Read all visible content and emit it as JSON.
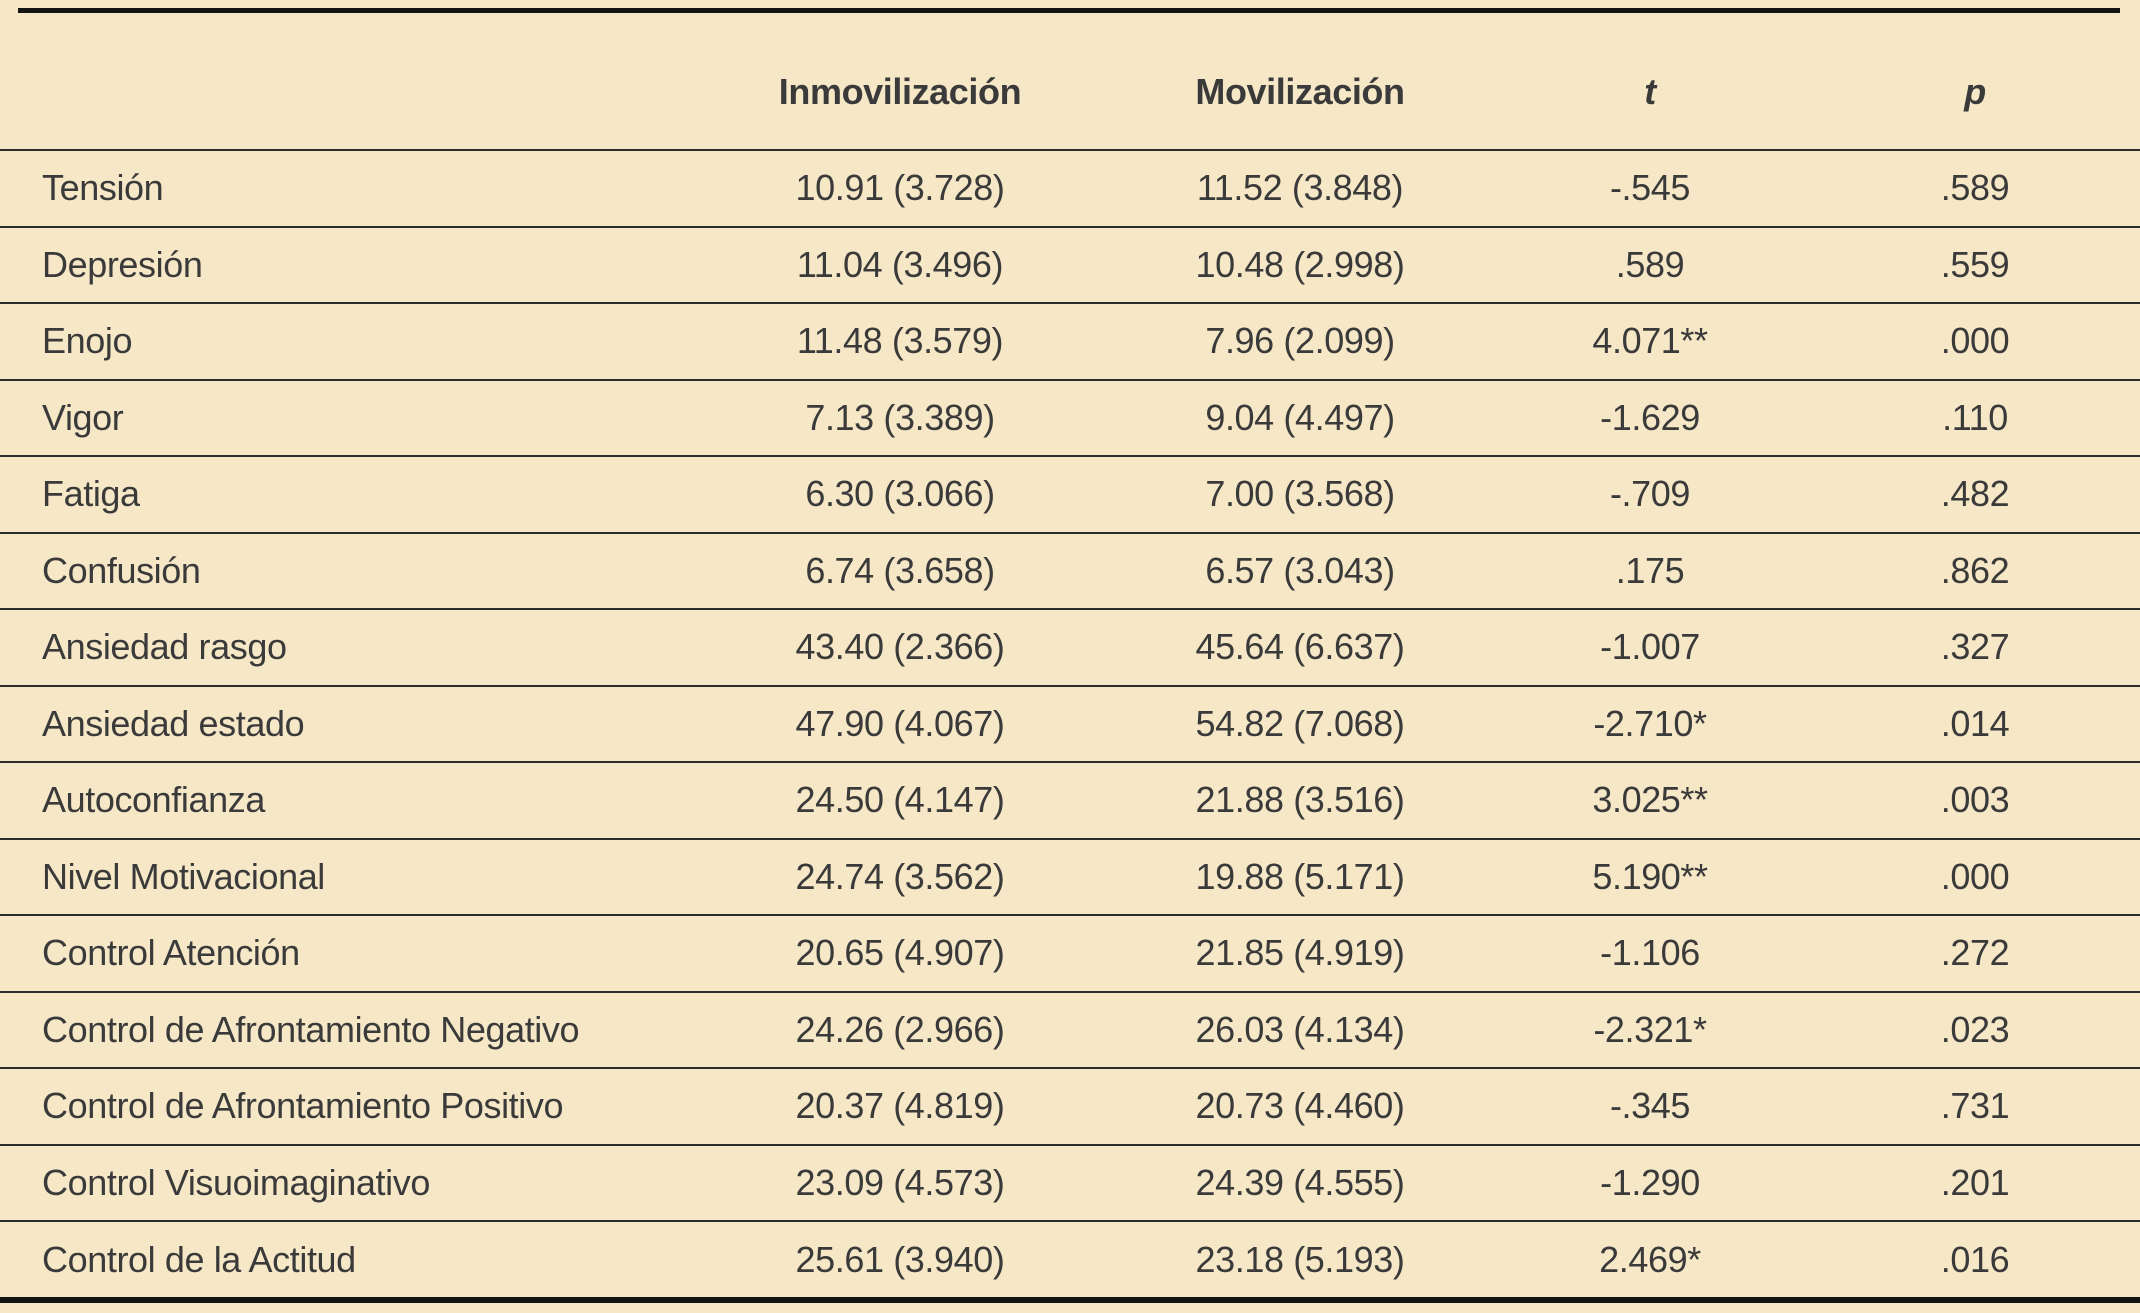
{
  "page": {
    "background_color": "#f6e7c7",
    "text_color": "#3a3a3a",
    "rule_color": "#141414"
  },
  "table": {
    "headers": {
      "rowlabel": "",
      "inmovilizacion": "Inmovilización",
      "movilizacion": "Movilización",
      "t": "t",
      "p": "p"
    },
    "rows": [
      {
        "label": "Tensión",
        "inmovilizacion": "10.91 (3.728)",
        "movilizacion": "11.52 (3.848)",
        "t": "-.545",
        "p": ".589"
      },
      {
        "label": "Depresión",
        "inmovilizacion": "11.04 (3.496)",
        "movilizacion": "10.48 (2.998)",
        "t": ".589",
        "p": ".559"
      },
      {
        "label": "Enojo",
        "inmovilizacion": "11.48 (3.579)",
        "movilizacion": "7.96 (2.099)",
        "t": "4.071**",
        "p": ".000"
      },
      {
        "label": "Vigor",
        "inmovilizacion": "7.13 (3.389)",
        "movilizacion": "9.04 (4.497)",
        "t": "-1.629",
        "p": ".110"
      },
      {
        "label": "Fatiga",
        "inmovilizacion": "6.30 (3.066)",
        "movilizacion": "7.00 (3.568)",
        "t": "-.709",
        "p": ".482"
      },
      {
        "label": "Confusión",
        "inmovilizacion": "6.74 (3.658)",
        "movilizacion": "6.57 (3.043)",
        "t": ".175",
        "p": ".862"
      },
      {
        "label": "Ansiedad rasgo",
        "inmovilizacion": "43.40 (2.366)",
        "movilizacion": "45.64 (6.637)",
        "t": "-1.007",
        "p": ".327"
      },
      {
        "label": "Ansiedad estado",
        "inmovilizacion": "47.90 (4.067)",
        "movilizacion": "54.82 (7.068)",
        "t": "-2.710*",
        "p": ".014"
      },
      {
        "label": "Autoconfianza",
        "inmovilizacion": "24.50 (4.147)",
        "movilizacion": "21.88 (3.516)",
        "t": "3.025**",
        "p": ".003"
      },
      {
        "label": "Nivel Motivacional",
        "inmovilizacion": "24.74 (3.562)",
        "movilizacion": "19.88 (5.171)",
        "t": "5.190**",
        "p": ".000"
      },
      {
        "label": "Control Atención",
        "inmovilizacion": "20.65 (4.907)",
        "movilizacion": "21.85 (4.919)",
        "t": "-1.106",
        "p": ".272"
      },
      {
        "label": "Control de Afrontamiento Negativo",
        "inmovilizacion": "24.26 (2.966)",
        "movilizacion": "26.03 (4.134)",
        "t": "-2.321*",
        "p": ".023"
      },
      {
        "label": "Control de Afrontamiento Positivo",
        "inmovilizacion": "20.37 (4.819)",
        "movilizacion": "20.73 (4.460)",
        "t": "-.345",
        "p": ".731"
      },
      {
        "label": "Control Visuoimaginativo",
        "inmovilizacion": "23.09 (4.573)",
        "movilizacion": "24.39 (4.555)",
        "t": "-1.290",
        "p": ".201"
      },
      {
        "label": "Control de la Actitud",
        "inmovilizacion": "25.61 (3.940)",
        "movilizacion": "23.18 (5.193)",
        "t": "2.469*",
        "p": ".016"
      }
    ]
  }
}
